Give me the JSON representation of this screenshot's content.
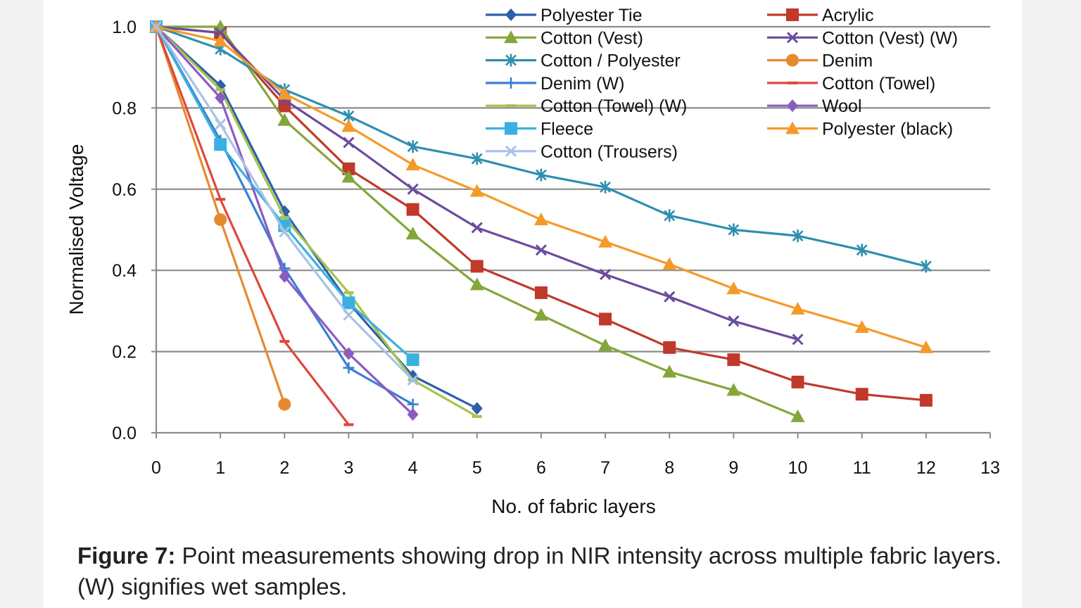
{
  "chart_data": {
    "type": "line",
    "xlabel": "No. of fabric layers",
    "ylabel": "Normalised Voltage",
    "xlim": [
      0,
      13
    ],
    "ylim": [
      0,
      1.0
    ],
    "x_ticks": [
      "0",
      "1",
      "2",
      "3",
      "4",
      "5",
      "6",
      "7",
      "8",
      "9",
      "10",
      "11",
      "12",
      "13"
    ],
    "y_ticks": [
      "0.0",
      "0.2",
      "0.4",
      "0.6",
      "0.8",
      "1.0"
    ],
    "grid": "horizontal",
    "legend_position": "top-right",
    "series": [
      {
        "name": "Polyester Tie",
        "color": "#2e5fa8",
        "marker": "diamond",
        "x": [
          0,
          1,
          2,
          3,
          4,
          5
        ],
        "y": [
          1.0,
          0.855,
          0.545,
          0.32,
          0.14,
          0.06
        ]
      },
      {
        "name": "Acrylic",
        "color": "#c0392b",
        "marker": "square",
        "x": [
          0,
          1,
          2,
          3,
          4,
          5,
          6,
          7,
          8,
          9,
          10,
          11,
          12
        ],
        "y": [
          1.0,
          0.985,
          0.805,
          0.65,
          0.55,
          0.41,
          0.345,
          0.28,
          0.21,
          0.18,
          0.125,
          0.095,
          0.08
        ]
      },
      {
        "name": "Cotton (Vest)",
        "color": "#84a63a",
        "marker": "triangle",
        "x": [
          0,
          1,
          2,
          3,
          4,
          5,
          6,
          7,
          8,
          9,
          10
        ],
        "y": [
          1.0,
          1.0,
          0.77,
          0.63,
          0.49,
          0.365,
          0.29,
          0.215,
          0.15,
          0.105,
          0.04
        ]
      },
      {
        "name": "Cotton (Vest) (W)",
        "color": "#6a4c9c",
        "marker": "x",
        "x": [
          0,
          1,
          2,
          3,
          4,
          5,
          6,
          7,
          8,
          9,
          10
        ],
        "y": [
          1.0,
          0.985,
          0.82,
          0.715,
          0.6,
          0.505,
          0.45,
          0.39,
          0.335,
          0.275,
          0.23
        ]
      },
      {
        "name": "Cotton / Polyester",
        "color": "#2e8fb0",
        "marker": "star",
        "x": [
          0,
          1,
          2,
          3,
          4,
          5,
          6,
          7,
          8,
          9,
          10,
          11,
          12
        ],
        "y": [
          1.0,
          0.945,
          0.845,
          0.78,
          0.705,
          0.675,
          0.635,
          0.605,
          0.535,
          0.5,
          0.485,
          0.45,
          0.41
        ]
      },
      {
        "name": "Denim",
        "color": "#e58a2e",
        "marker": "circle",
        "x": [
          0,
          1,
          2
        ],
        "y": [
          1.0,
          0.525,
          0.07
        ]
      },
      {
        "name": "Denim (W)",
        "color": "#3a7fd5",
        "marker": "plus",
        "x": [
          0,
          1,
          2,
          3,
          4
        ],
        "y": [
          1.0,
          0.72,
          0.405,
          0.16,
          0.07
        ]
      },
      {
        "name": "Cotton (Towel)",
        "color": "#e0463c",
        "marker": "dash",
        "x": [
          0,
          1,
          2,
          3
        ],
        "y": [
          1.0,
          0.575,
          0.225,
          0.02
        ]
      },
      {
        "name": "Cotton (Towel) (W)",
        "color": "#a6c44a",
        "marker": "dash",
        "x": [
          0,
          1,
          2,
          3,
          4,
          5
        ],
        "y": [
          1.0,
          0.845,
          0.53,
          0.345,
          0.13,
          0.04
        ]
      },
      {
        "name": "Wool",
        "color": "#8a5cc0",
        "marker": "diamond",
        "x": [
          0,
          1,
          2,
          3,
          4
        ],
        "y": [
          1.0,
          0.825,
          0.385,
          0.195,
          0.045
        ]
      },
      {
        "name": "Fleece",
        "color": "#3ab0e0",
        "marker": "square",
        "x": [
          0,
          1,
          2,
          3,
          4
        ],
        "y": [
          1.0,
          0.71,
          0.51,
          0.32,
          0.18
        ]
      },
      {
        "name": "Polyester (black)",
        "color": "#f59a2a",
        "marker": "triangle",
        "x": [
          0,
          1,
          2,
          3,
          4,
          5,
          6,
          7,
          8,
          9,
          10,
          11,
          12
        ],
        "y": [
          1.0,
          0.965,
          0.835,
          0.755,
          0.66,
          0.595,
          0.525,
          0.47,
          0.415,
          0.355,
          0.305,
          0.26,
          0.21
        ]
      },
      {
        "name": "Cotton (Trousers)",
        "color": "#a9c1e6",
        "marker": "x",
        "x": [
          0,
          1,
          2,
          3,
          4
        ],
        "y": [
          1.0,
          0.76,
          0.495,
          0.29,
          0.13
        ]
      }
    ]
  },
  "caption": {
    "label": "Figure 7:",
    "text": " Point measurements showing drop in NIR intensity across multiple fabric layers. (W) signifies wet samples."
  }
}
